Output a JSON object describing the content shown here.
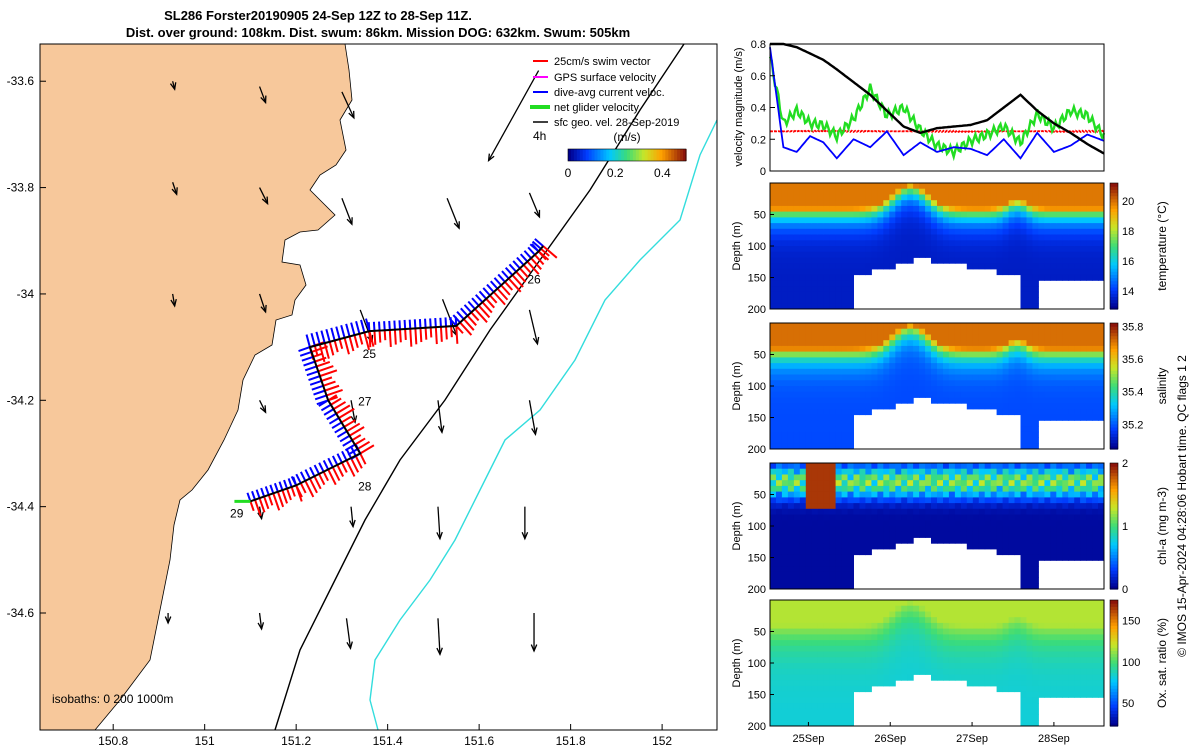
{
  "title": {
    "line1": "SL286 Forster20190905 24-Sep 12Z to 28-Sep 11Z.",
    "line2": "Dist. over ground: 108km. Dist. swum: 86km. Mission DOG: 632km. Swum: 505km"
  },
  "side_label": "© IMOS 15-Apr-2024 04:28:06 Hobart time. QC flags 1  2",
  "colors": {
    "land": "#f7c89b",
    "swim": "#ff0000",
    "gps": "#ff00ff",
    "current": "#0000ff",
    "net": "#22dd22",
    "geo": "#000000",
    "isobath200": "#000000",
    "isobath1000": "#33dddd"
  },
  "chart_data": [
    {
      "id": "map",
      "type": "scatter",
      "title": "SL286 Forster20190905 24-Sep 12Z to 28-Sep 11Z.",
      "x_ticks": [
        "150.8",
        "151",
        "151.2",
        "151.4",
        "151.6",
        "151.8",
        "152"
      ],
      "y_ticks": [
        "-33.6",
        "-33.8",
        "-34",
        "-34.2",
        "-34.4",
        "-34.6"
      ],
      "xlim": [
        150.64,
        152.12
      ],
      "ylim": [
        -34.82,
        -33.53
      ],
      "legend": {
        "position": "top-right",
        "items": [
          {
            "key": "swim",
            "label": "25cm/s swim vector"
          },
          {
            "key": "gps",
            "label": "GPS surface velocity"
          },
          {
            "key": "current",
            "label": "dive-avg current veloc."
          },
          {
            "key": "net",
            "label": "net glider velocity"
          },
          {
            "key": "geo",
            "label": "sfc geo. vel. 28-Sep-2019"
          }
        ]
      },
      "colorbar": {
        "label": "(m/s)",
        "ticks": [
          "0",
          "0.2",
          "0.4"
        ],
        "range": [
          0,
          0.5
        ]
      },
      "interval_label": "4h",
      "isobath_label": "isobaths: 0   200  1000m",
      "day_labels": [
        {
          "text": "25",
          "lon": 151.36,
          "lat": -34.12
        },
        {
          "text": "26",
          "lon": 151.72,
          "lat": -33.98
        },
        {
          "text": "27",
          "lon": 151.35,
          "lat": -34.21
        },
        {
          "text": "28",
          "lon": 151.35,
          "lat": -34.37
        },
        {
          "text": "29",
          "lon": 151.07,
          "lat": -34.42
        }
      ],
      "track": [
        {
          "lon": 151.1,
          "lat": -34.39
        },
        {
          "lon": 151.2,
          "lat": -34.36
        },
        {
          "lon": 151.34,
          "lat": -34.3
        },
        {
          "lon": 151.27,
          "lat": -34.2
        },
        {
          "lon": 151.23,
          "lat": -34.1
        },
        {
          "lon": 151.36,
          "lat": -34.07
        },
        {
          "lon": 151.55,
          "lat": -34.06
        },
        {
          "lon": 151.73,
          "lat": -33.92
        },
        {
          "lon": 151.74,
          "lat": -33.91
        }
      ],
      "geo_arrows": [
        {
          "lon": 150.93,
          "lat": -33.6,
          "u": 0.01,
          "v": -0.04
        },
        {
          "lon": 151.12,
          "lat": -33.61,
          "u": 0.03,
          "v": -0.08
        },
        {
          "lon": 151.3,
          "lat": -33.62,
          "u": 0.06,
          "v": -0.13
        },
        {
          "lon": 151.73,
          "lat": -33.58,
          "u": -0.25,
          "v": -0.45
        },
        {
          "lon": 150.93,
          "lat": -33.79,
          "u": 0.02,
          "v": -0.06
        },
        {
          "lon": 151.12,
          "lat": -33.8,
          "u": 0.04,
          "v": -0.08
        },
        {
          "lon": 151.3,
          "lat": -33.82,
          "u": 0.05,
          "v": -0.13
        },
        {
          "lon": 151.53,
          "lat": -33.82,
          "u": 0.06,
          "v": -0.15
        },
        {
          "lon": 151.71,
          "lat": -33.81,
          "u": 0.05,
          "v": -0.12
        },
        {
          "lon": 150.93,
          "lat": -34.0,
          "u": 0.01,
          "v": -0.06
        },
        {
          "lon": 151.12,
          "lat": -34.0,
          "u": 0.03,
          "v": -0.09
        },
        {
          "lon": 151.34,
          "lat": -34.03,
          "u": 0.06,
          "v": -0.16
        },
        {
          "lon": 151.52,
          "lat": -34.01,
          "u": 0.07,
          "v": -0.18
        },
        {
          "lon": 151.71,
          "lat": -34.03,
          "u": 0.04,
          "v": -0.17
        },
        {
          "lon": 151.12,
          "lat": -34.2,
          "u": 0.03,
          "v": -0.06
        },
        {
          "lon": 151.32,
          "lat": -34.2,
          "u": 0.02,
          "v": -0.11
        },
        {
          "lon": 151.51,
          "lat": -34.2,
          "u": 0.02,
          "v": -0.16
        },
        {
          "lon": 151.71,
          "lat": -34.2,
          "u": 0.03,
          "v": -0.17
        },
        {
          "lon": 151.12,
          "lat": -34.4,
          "u": 0.01,
          "v": -0.06
        },
        {
          "lon": 151.32,
          "lat": -34.4,
          "u": 0.01,
          "v": -0.1
        },
        {
          "lon": 151.51,
          "lat": -34.4,
          "u": 0.01,
          "v": -0.16
        },
        {
          "lon": 151.7,
          "lat": -34.4,
          "u": 0.0,
          "v": -0.16
        },
        {
          "lon": 150.92,
          "lat": -34.6,
          "u": 0.0,
          "v": -0.05
        },
        {
          "lon": 151.12,
          "lat": -34.6,
          "u": 0.01,
          "v": -0.08
        },
        {
          "lon": 151.31,
          "lat": -34.61,
          "u": 0.02,
          "v": -0.15
        },
        {
          "lon": 151.51,
          "lat": -34.61,
          "u": 0.01,
          "v": -0.18
        },
        {
          "lon": 151.72,
          "lat": -34.6,
          "u": 0.0,
          "v": -0.19
        }
      ]
    },
    {
      "id": "velocity",
      "type": "line",
      "ylabel": "velocity magnitude (m/s)",
      "ylim": [
        0,
        0.8
      ],
      "y_ticks": [
        "0",
        "0.2",
        "0.4",
        "0.6",
        "0.8"
      ],
      "x": [
        0,
        0.04,
        0.08,
        0.12,
        0.16,
        0.2,
        0.25,
        0.3,
        0.35,
        0.4,
        0.45,
        0.5,
        0.55,
        0.6,
        0.65,
        0.7,
        0.75,
        0.8,
        0.85,
        0.9,
        0.95,
        1.0
      ],
      "series": [
        {
          "name": "swim",
          "color": "#ff0000",
          "values": [
            0.25,
            0.25,
            0.25,
            0.25,
            0.25,
            0.25,
            0.25,
            0.25,
            0.25,
            0.25,
            0.25,
            0.25,
            0.25,
            0.25,
            0.25,
            0.25,
            0.25,
            0.25,
            0.25,
            0.25,
            0.25,
            0.25
          ]
        },
        {
          "name": "net",
          "color": "#22dd22",
          "values": [
            0.72,
            0.3,
            0.38,
            0.3,
            0.29,
            0.22,
            0.33,
            0.52,
            0.35,
            0.4,
            0.26,
            0.16,
            0.12,
            0.19,
            0.23,
            0.28,
            0.18,
            0.36,
            0.27,
            0.38,
            0.35,
            0.22
          ]
        },
        {
          "name": "current",
          "color": "#0000ff",
          "values": [
            0.78,
            0.15,
            0.12,
            0.22,
            0.18,
            0.08,
            0.2,
            0.15,
            0.25,
            0.1,
            0.18,
            0.12,
            0.15,
            0.14,
            0.1,
            0.2,
            0.08,
            0.24,
            0.12,
            0.16,
            0.23,
            0.19
          ]
        },
        {
          "name": "geo",
          "color": "#000000",
          "values": [
            0.8,
            0.8,
            0.78,
            0.74,
            0.7,
            0.64,
            0.56,
            0.48,
            0.38,
            0.28,
            0.24,
            0.27,
            0.28,
            0.29,
            0.32,
            0.4,
            0.48,
            0.38,
            0.3,
            0.24,
            0.17,
            0.11
          ]
        }
      ]
    },
    {
      "id": "temperature",
      "type": "heatmap",
      "ylabel": "Depth (m)",
      "ylim": [
        0,
        200
      ],
      "y_ticks": [
        "50",
        "100",
        "150",
        "200"
      ],
      "cbar_label": "temperature (°C)",
      "cbar_ticks": [
        "14",
        "16",
        "18",
        "20"
      ],
      "crange": [
        12.8,
        21.2
      ],
      "surface": 20.0,
      "deep": 13.4,
      "gradient": 0.055
    },
    {
      "id": "salinity",
      "type": "heatmap",
      "ylabel": "Depth (m)",
      "ylim": [
        0,
        200
      ],
      "y_ticks": [
        "50",
        "100",
        "150",
        "200"
      ],
      "cbar_label": "salinity",
      "cbar_ticks": [
        "35.2",
        "35.4",
        "35.6",
        "35.8"
      ],
      "crange": [
        35.05,
        35.82
      ],
      "surface": 35.72,
      "deep": 35.18,
      "gradient": 0.055
    },
    {
      "id": "chla",
      "type": "heatmap",
      "ylabel": "Depth (m)",
      "ylim": [
        0,
        200
      ],
      "y_ticks": [
        "50",
        "100",
        "150",
        "200"
      ],
      "cbar_label": "chl-a (mg m-3)",
      "cbar_ticks": [
        "0",
        "1",
        "2"
      ],
      "crange": [
        0,
        2
      ],
      "surface": 1.1,
      "deep": 0.05,
      "gradient": 0.045
    },
    {
      "id": "oxygen",
      "type": "heatmap",
      "ylabel": "Depth (m)",
      "ylim": [
        0,
        200
      ],
      "y_ticks": [
        "50",
        "100",
        "150",
        "200"
      ],
      "cbar_label": "Ox. sat. ratio (%)",
      "cbar_ticks": [
        "50",
        "100",
        "150"
      ],
      "crange": [
        22,
        175
      ],
      "surface": 118,
      "deep": 82,
      "gradient": 0.03
    }
  ],
  "time_axis": {
    "ticks": [
      "25Sep",
      "26Sep",
      "27Sep",
      "28Sep"
    ]
  }
}
